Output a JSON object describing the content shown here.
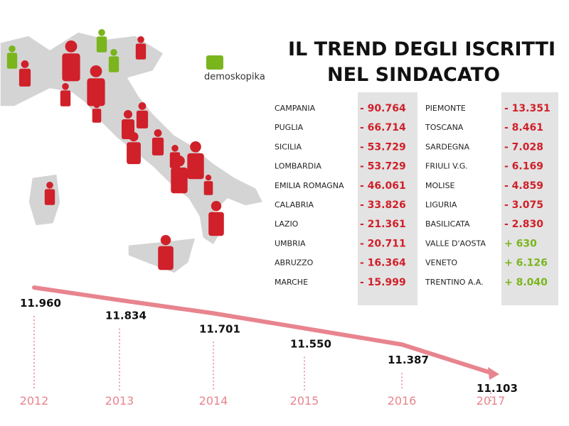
{
  "title": [
    "IL TREND DEGLI ISCRITTI",
    "NEL SINDACATO"
  ],
  "brand": "demoskopika",
  "regions_left": [
    {
      "name": "CAMPANIA",
      "change": "- 90.764"
    },
    {
      "name": "PUGLIA",
      "change": "- 66.714"
    },
    {
      "name": "SICILIA",
      "change": "- 53.729"
    },
    {
      "name": "LOMBARDIA",
      "change": "- 53.729"
    },
    {
      "name": "EMILIA ROMAGNA",
      "change": "- 46.061"
    },
    {
      "name": "CALABRIA",
      "change": "- 33.826"
    },
    {
      "name": "LAZIO",
      "change": "- 21.361"
    },
    {
      "name": "UMBRIA",
      "change": "- 20.711"
    },
    {
      "name": "ABRUZZO",
      "change": "- 16.364"
    },
    {
      "name": "MARCHE",
      "change": "- 15.999"
    }
  ],
  "regions_right": [
    {
      "name": "PIEMONTE",
      "change": "- 13.351"
    },
    {
      "name": "TOSCANA",
      "change": "- 8.461"
    },
    {
      "name": "SARDEGNA",
      "change": "- 7.028"
    },
    {
      "name": "FRIULI V.G.",
      "change": "- 6.169"
    },
    {
      "name": "MOLISE",
      "change": "- 4.859"
    },
    {
      "name": "LIGURIA",
      "change": "- 3.075"
    },
    {
      "name": "BASILICATA",
      "change": "- 2.830"
    },
    {
      "name": "VALLE D'AOSTA",
      "change": "+ 630"
    },
    {
      "name": "VENETO",
      "change": "+ 6.126"
    },
    {
      "name": "TRENTINO A.A.",
      "change": "+ 8.040"
    }
  ],
  "chart_data": {
    "type": "line",
    "categories": [
      "2012",
      "2013",
      "2014",
      "2015",
      "2016",
      "2017"
    ],
    "values": [
      11960,
      11834,
      11701,
      11550,
      11387,
      11103
    ],
    "value_labels": [
      "11.960",
      "11.834",
      "11.701",
      "11.550",
      "11.387",
      "11.103"
    ],
    "color": "#e8848e"
  }
}
